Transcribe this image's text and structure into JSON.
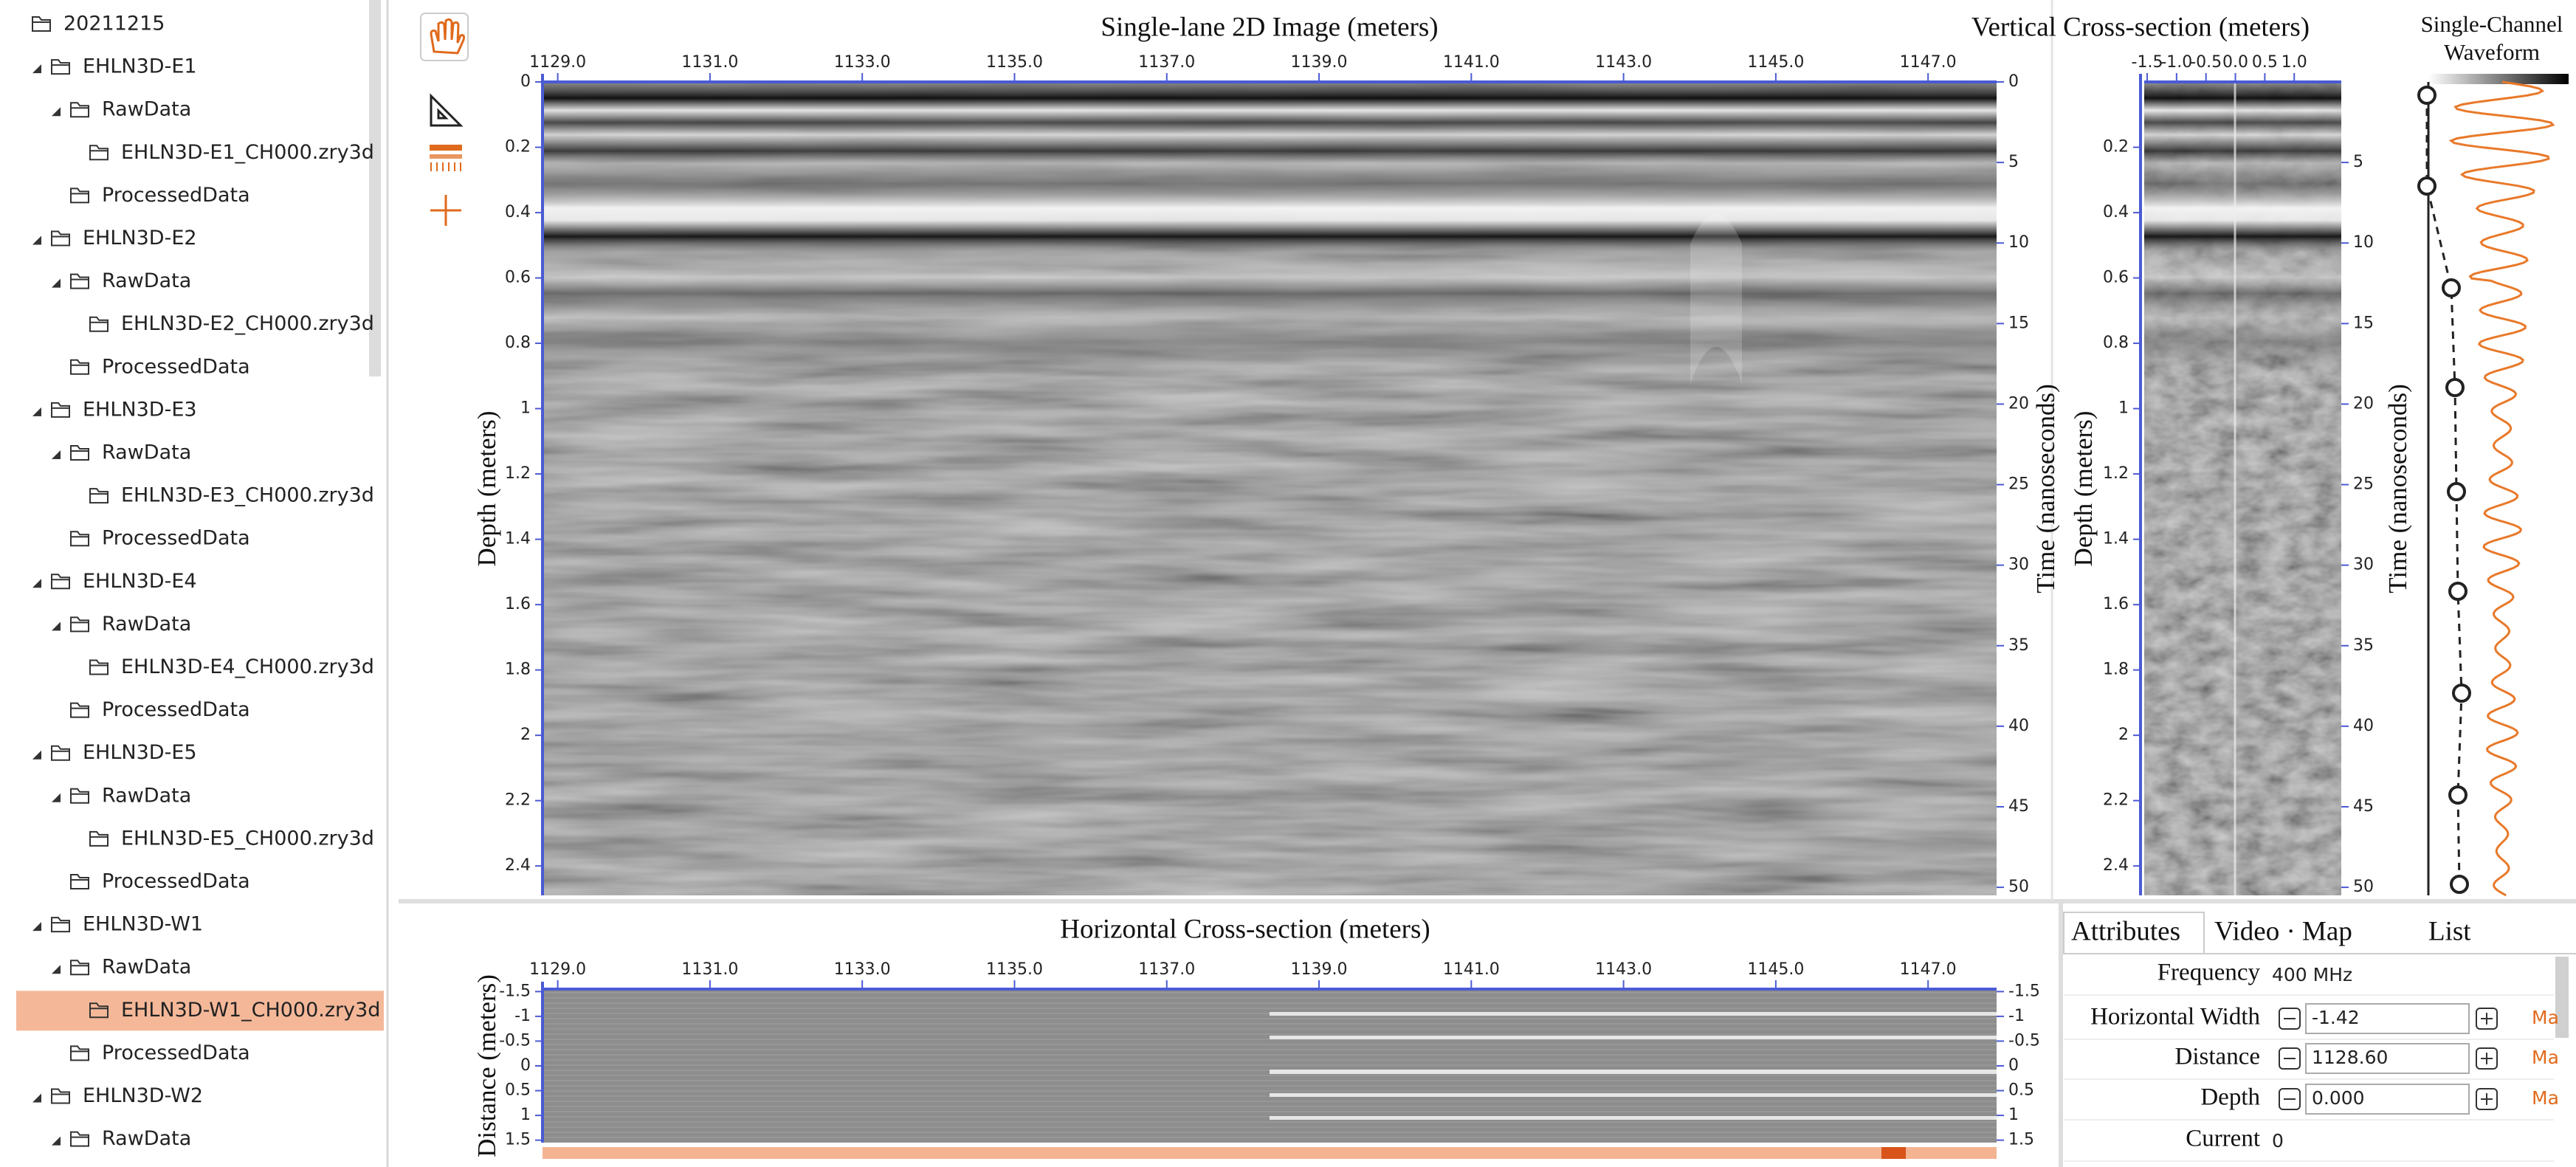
{
  "tree": {
    "label": "20211215",
    "children": [
      {
        "label": "EHLN3D-E1",
        "expanded": true,
        "children": [
          {
            "label": "RawData",
            "expanded": true,
            "children": [
              {
                "label": "EHLN3D-E1_CH000.zry3d"
              }
            ]
          },
          {
            "label": "ProcessedData"
          }
        ]
      },
      {
        "label": "EHLN3D-E2",
        "expanded": true,
        "children": [
          {
            "label": "RawData",
            "expanded": true,
            "children": [
              {
                "label": "EHLN3D-E2_CH000.zry3d"
              }
            ]
          },
          {
            "label": "ProcessedData"
          }
        ]
      },
      {
        "label": "EHLN3D-E3",
        "expanded": true,
        "children": [
          {
            "label": "RawData",
            "expanded": true,
            "children": [
              {
                "label": "EHLN3D-E3_CH000.zry3d"
              }
            ]
          },
          {
            "label": "ProcessedData"
          }
        ]
      },
      {
        "label": "EHLN3D-E4",
        "expanded": true,
        "children": [
          {
            "label": "RawData",
            "expanded": true,
            "children": [
              {
                "label": "EHLN3D-E4_CH000.zry3d"
              }
            ]
          },
          {
            "label": "ProcessedData"
          }
        ]
      },
      {
        "label": "EHLN3D-E5",
        "expanded": true,
        "children": [
          {
            "label": "RawData",
            "expanded": true,
            "children": [
              {
                "label": "EHLN3D-E5_CH000.zry3d"
              }
            ]
          },
          {
            "label": "ProcessedData"
          }
        ]
      },
      {
        "label": "EHLN3D-W1",
        "expanded": true,
        "children": [
          {
            "label": "RawData",
            "expanded": true,
            "children": [
              {
                "label": "EHLN3D-W1_CH000.zry3d",
                "selected": true
              }
            ]
          },
          {
            "label": "ProcessedData"
          }
        ]
      },
      {
        "label": "EHLN3D-W2",
        "expanded": true,
        "children": [
          {
            "label": "RawData",
            "expanded": true
          }
        ]
      }
    ]
  },
  "main": {
    "title": "Single-lane 2D Image (meters)",
    "y_label": "Depth (meters)",
    "y2_label": "Time (nanoseconds)",
    "xlim": [
      1128.8,
      1147.9
    ],
    "xticks": [
      {
        "value": 1129,
        "label": "1129.0"
      },
      {
        "value": 1131,
        "label": "1131.0"
      },
      {
        "value": 1133,
        "label": "1133.0"
      },
      {
        "value": 1135,
        "label": "1135.0"
      },
      {
        "value": 1137,
        "label": "1137.0"
      },
      {
        "value": 1139,
        "label": "1139.0"
      },
      {
        "value": 1141,
        "label": "1141.0"
      },
      {
        "value": 1143,
        "label": "1143.0"
      },
      {
        "value": 1145,
        "label": "1145.0"
      },
      {
        "value": 1147,
        "label": "1147.0"
      }
    ],
    "ylim": [
      0,
      2.49
    ],
    "yticks": [
      0,
      0.2,
      0.4,
      0.6,
      0.8,
      1,
      1.2,
      1.4,
      1.6,
      1.8,
      2,
      2.2,
      2.4
    ],
    "y2lim": [
      0,
      50.5
    ],
    "y2ticks": [
      0,
      5,
      10,
      15,
      20,
      25,
      30,
      35,
      40,
      45,
      50
    ]
  },
  "vertical": {
    "title": "Vertical Cross-section (meters)",
    "y_label": "Depth (meters)",
    "y2_label": "Time (nanoseconds)",
    "xlim": [
      -1.55,
      1.8
    ],
    "xticks": [
      -1.5,
      {
        "value": -1,
        "label": "-1.0"
      },
      -0.5,
      {
        "value": 0,
        "label": "0.0"
      },
      0.5,
      {
        "value": 1,
        "label": "1.0"
      }
    ],
    "ylim": [
      0,
      2.49
    ],
    "yticks": [
      0.2,
      0.4,
      0.6,
      0.8,
      1,
      1.2,
      1.4,
      1.6,
      1.8,
      2,
      2.2,
      2.4
    ],
    "y2lim": [
      0,
      50.5
    ],
    "y2ticks": [
      5,
      10,
      15,
      20,
      25,
      30,
      35,
      40,
      45,
      50
    ]
  },
  "waveform": {
    "title": "Single-Channel Waveform"
  },
  "horizontal": {
    "title": "Horizontal Cross-section (meters)",
    "y_label": "Distance (meters)",
    "xlim": [
      1128.8,
      1147.9
    ],
    "xticks": [
      {
        "value": 1129,
        "label": "1129.0"
      },
      {
        "value": 1131,
        "label": "1131.0"
      },
      {
        "value": 1133,
        "label": "1133.0"
      },
      {
        "value": 1135,
        "label": "1135.0"
      },
      {
        "value": 1137,
        "label": "1137.0"
      },
      {
        "value": 1139,
        "label": "1139.0"
      },
      {
        "value": 1141,
        "label": "1141.0"
      },
      {
        "value": 1143,
        "label": "1143.0"
      },
      {
        "value": 1145,
        "label": "1145.0"
      },
      {
        "value": 1147,
        "label": "1147.0"
      }
    ],
    "ylim": [
      -1.55,
      1.55
    ],
    "yticks": [
      -1.5,
      -1,
      -0.5,
      0,
      0.5,
      1,
      1.5
    ]
  },
  "attributes": {
    "tabs": [
      "Attributes",
      "Video · Map",
      "List"
    ],
    "rows": [
      {
        "label": "Frequency",
        "value": "400 MHz"
      },
      {
        "label": "Horizontal Width",
        "value": "-1.42",
        "more": "Ma"
      },
      {
        "label": "Distance",
        "value": "1128.60",
        "more": "Ma"
      },
      {
        "label": "Depth",
        "value": "0.000",
        "more": "Ma"
      },
      {
        "label": "Current",
        "value": "0"
      }
    ]
  }
}
